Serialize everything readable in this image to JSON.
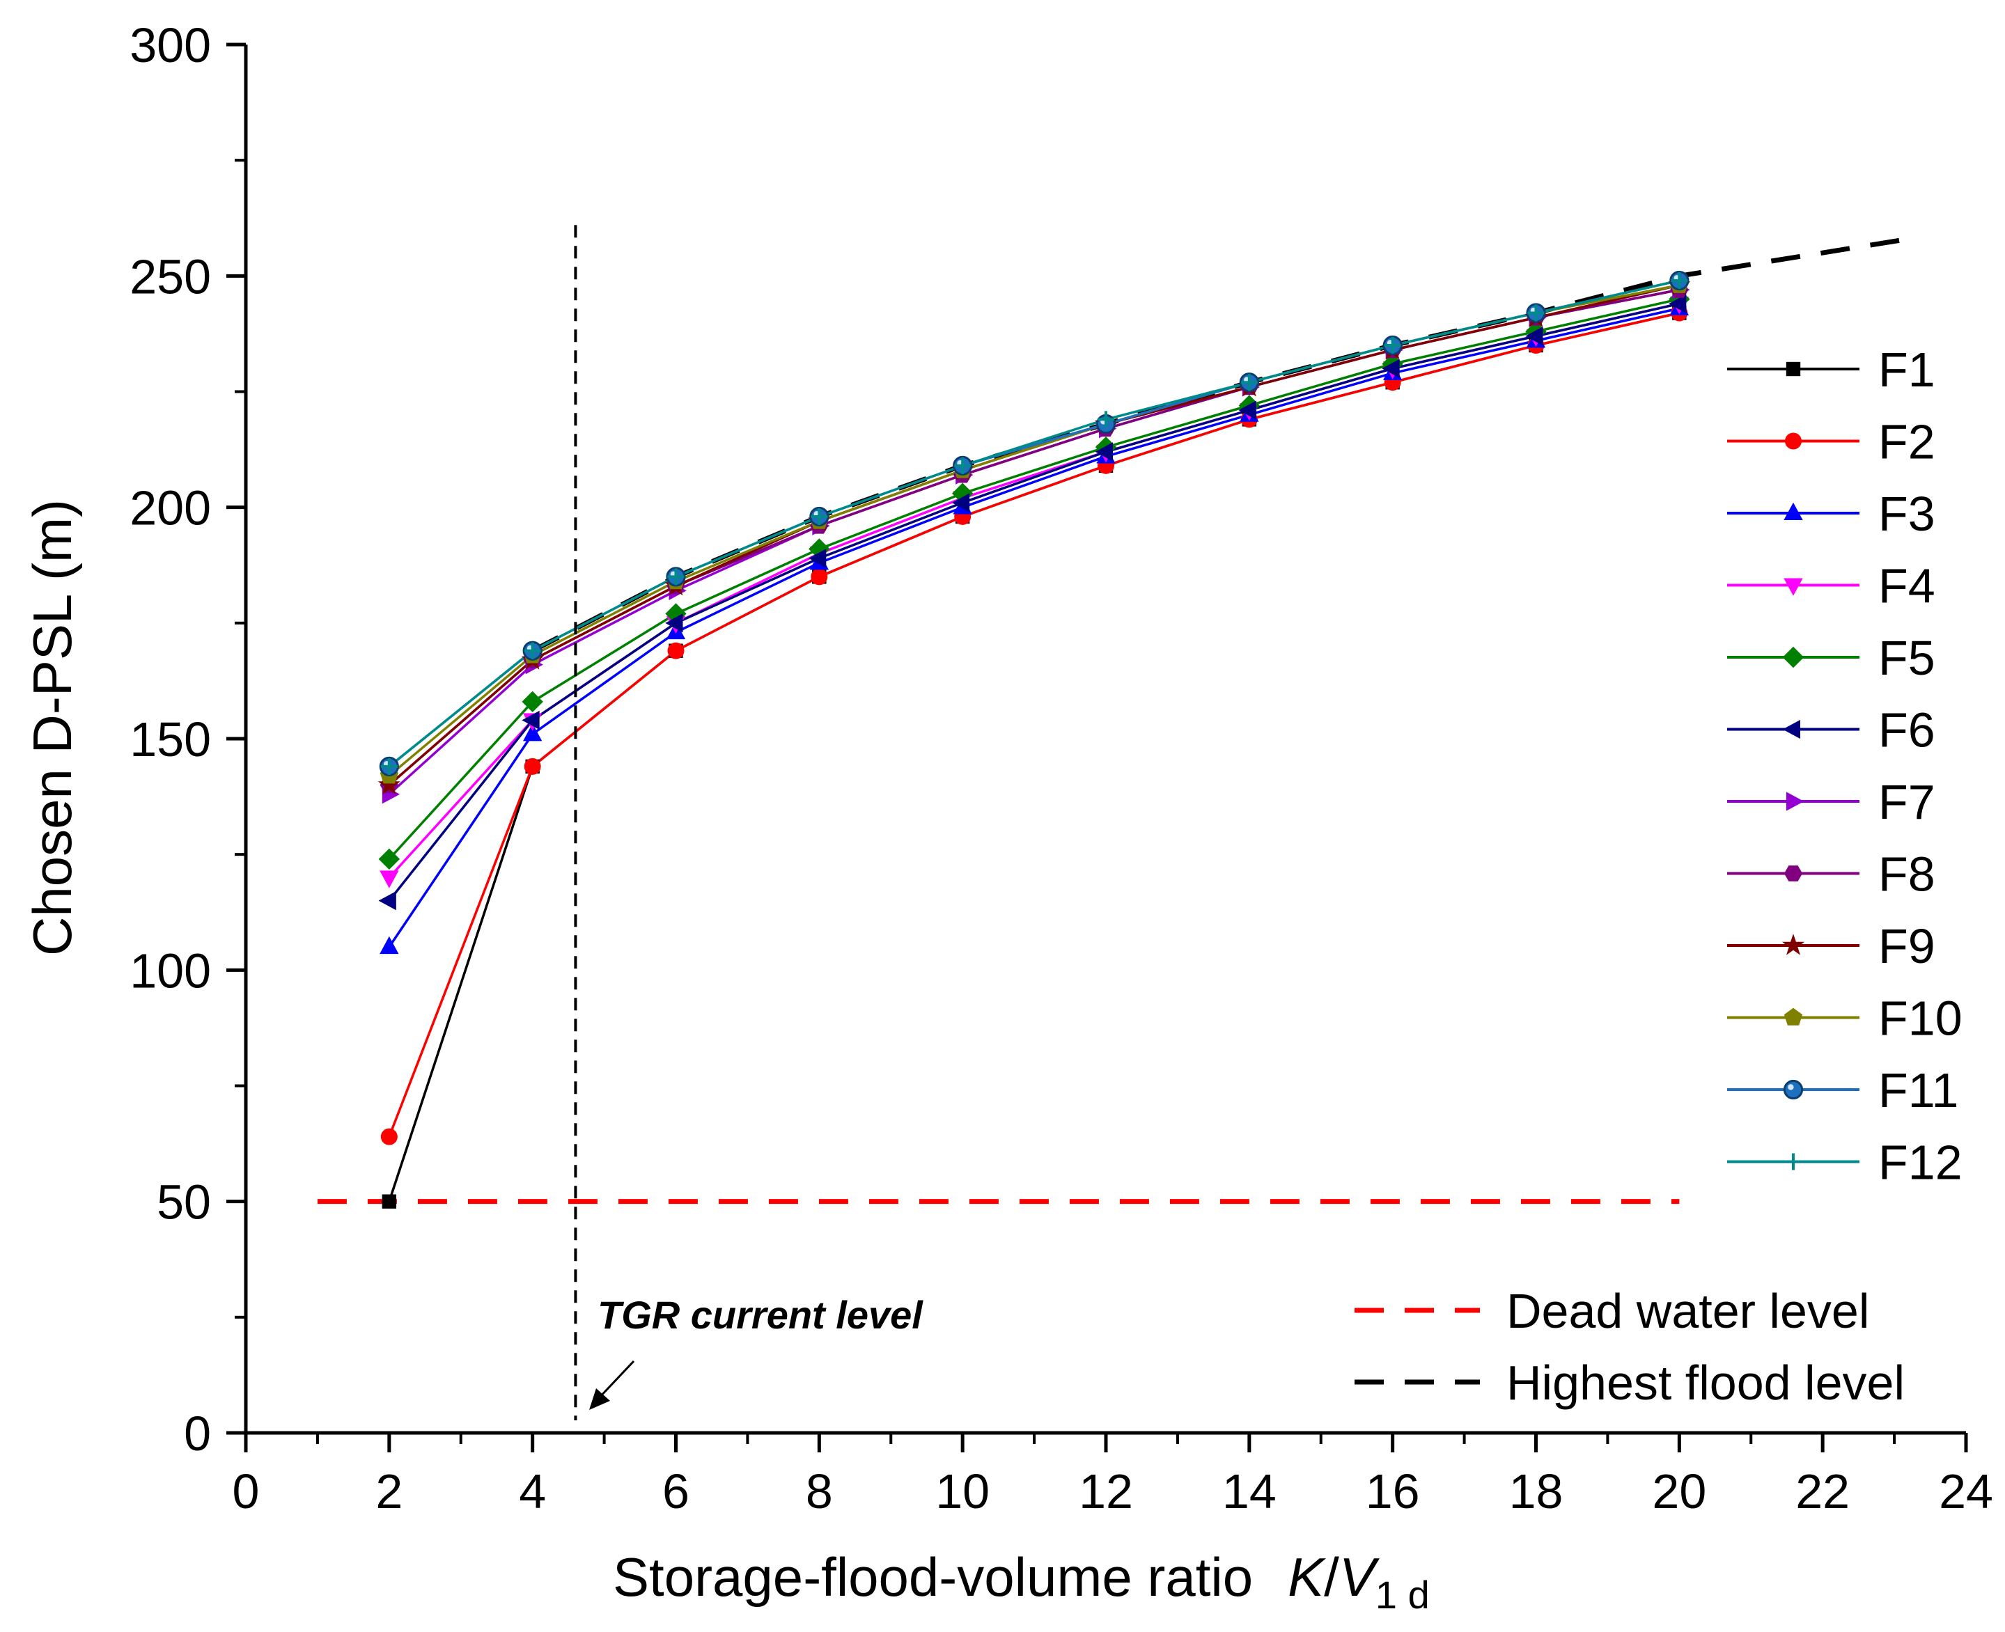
{
  "chart_data": {
    "type": "line",
    "title": "",
    "xlabel": "Storage-flood-volume ratio",
    "xlabel_symbol": {
      "K": "K",
      "slash": "/",
      "V": "V",
      "sub": "1 d"
    },
    "ylabel": "Chosen D-PSL  (m)",
    "xlim": [
      0,
      24
    ],
    "ylim": [
      0,
      300
    ],
    "x_ticks": [
      "0",
      "2",
      "4",
      "6",
      "8",
      "10",
      "12",
      "14",
      "16",
      "18",
      "20",
      "22",
      "24"
    ],
    "y_ticks": [
      "0",
      "50",
      "100",
      "150",
      "200",
      "250",
      "300"
    ],
    "x": [
      2,
      4,
      6,
      8,
      10,
      12,
      14,
      16,
      18,
      20
    ],
    "series": [
      {
        "name": "F1",
        "color": "#000000",
        "marker": "square",
        "values": [
          50,
          144,
          169,
          185,
          198,
          209,
          219,
          227,
          235,
          242
        ]
      },
      {
        "name": "F2",
        "color": "#ff0000",
        "marker": "circle",
        "values": [
          64,
          144,
          169,
          185,
          198,
          209,
          219,
          227,
          235,
          242
        ]
      },
      {
        "name": "F3",
        "color": "#0000ff",
        "marker": "triangle-up",
        "values": [
          105,
          151,
          173,
          188,
          200,
          211,
          220,
          229,
          236,
          243
        ]
      },
      {
        "name": "F4",
        "color": "#ff00ff",
        "marker": "triangle-down",
        "values": [
          120,
          154,
          175,
          190,
          202,
          212,
          221,
          230,
          237,
          244
        ]
      },
      {
        "name": "F5",
        "color": "#008000",
        "marker": "diamond",
        "values": [
          124,
          158,
          177,
          191,
          203,
          213,
          222,
          231,
          238,
          245
        ]
      },
      {
        "name": "F6",
        "color": "#000080",
        "marker": "triangle-left",
        "values": [
          115,
          154,
          175,
          189,
          201,
          212,
          221,
          230,
          237,
          244
        ]
      },
      {
        "name": "F7",
        "color": "#9400d3",
        "marker": "triangle-right",
        "values": [
          138,
          166,
          182,
          196,
          207,
          217,
          226,
          234,
          241,
          247
        ]
      },
      {
        "name": "F8",
        "color": "#800080",
        "marker": "hexagon",
        "values": [
          140,
          167,
          183,
          196,
          207,
          217,
          226,
          234,
          241,
          247
        ]
      },
      {
        "name": "F9",
        "color": "#800000",
        "marker": "star",
        "values": [
          140,
          167,
          183,
          197,
          208,
          218,
          226,
          234,
          241,
          248
        ]
      },
      {
        "name": "F10",
        "color": "#808000",
        "marker": "pentagon",
        "values": [
          142,
          168,
          184,
          197,
          208,
          218,
          227,
          235,
          242,
          248
        ]
      },
      {
        "name": "F11",
        "color": "#1f6fbf",
        "marker": "sphere",
        "values": [
          144,
          169,
          185,
          198,
          209,
          218,
          227,
          235,
          242,
          249
        ]
      },
      {
        "name": "F12",
        "color": "#008b8b",
        "marker": "plus",
        "values": [
          144,
          169,
          185,
          198,
          209,
          219,
          227,
          235,
          242,
          249
        ]
      }
    ],
    "reference_lines": [
      {
        "name": "Dead water level",
        "color": "#ff0000",
        "style": "dashed",
        "x": [
          1,
          20
        ],
        "y": [
          50,
          50
        ]
      },
      {
        "name": "Highest flood level",
        "color": "#000000",
        "style": "dashed",
        "x": [
          4,
          6,
          8,
          10,
          12,
          14,
          16,
          18,
          20,
          23.2
        ],
        "y": [
          169,
          185,
          198,
          209,
          218,
          227,
          235,
          242,
          250,
          258
        ]
      }
    ],
    "vertical_marker": {
      "x": 4.6,
      "y_top": 261,
      "label": "TGR current level"
    },
    "legend_position": "right"
  }
}
